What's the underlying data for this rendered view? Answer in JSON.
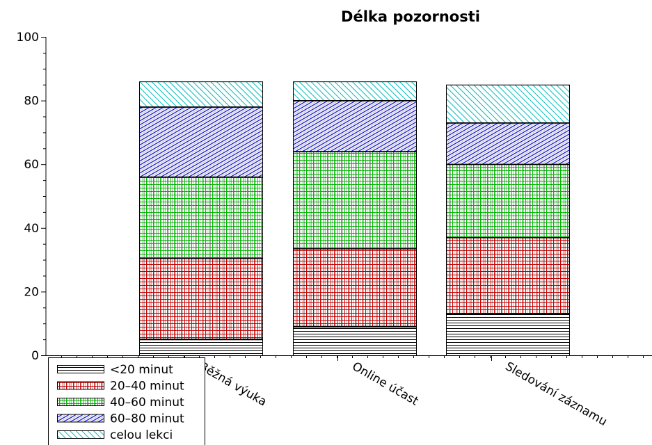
{
  "chart_data": {
    "type": "bar",
    "stacked": true,
    "title": "Délka pozornosti",
    "xlabel": "",
    "ylabel": "",
    "ylim": [
      0,
      100
    ],
    "yticks": [
      "0",
      "20",
      "40",
      "60",
      "80",
      "100"
    ],
    "categories": [
      "Běžná výuka",
      "Online účast",
      "Sledování záznamu"
    ],
    "series": [
      {
        "name": "<20 minut",
        "values": [
          5,
          9,
          13
        ],
        "pattern": "horizontal",
        "color": "#000000"
      },
      {
        "name": "20–40 minut",
        "values": [
          25.5,
          24.5,
          24
        ],
        "pattern": "grid",
        "color": "#cc0000"
      },
      {
        "name": "40–60 minut",
        "values": [
          25.5,
          30.5,
          23
        ],
        "pattern": "grid",
        "color": "#00bb00"
      },
      {
        "name": "60–80 minut",
        "values": [
          22,
          16,
          13
        ],
        "pattern": "diagonal-dense",
        "color": "#0000cc"
      },
      {
        "name": "celou lekci",
        "values": [
          8,
          6,
          12
        ],
        "pattern": "diagonal",
        "color": "#00bbbb"
      }
    ],
    "grid": false,
    "legend_position": "bottom-left"
  }
}
